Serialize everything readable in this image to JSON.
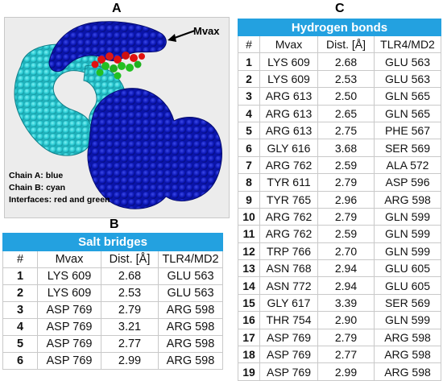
{
  "panels": {
    "a": "A",
    "b": "B",
    "c": "C"
  },
  "figure_a": {
    "arrow_label": "Mvax",
    "legend": [
      "Chain A: blue",
      "Chain B: cyan",
      "Interfaces: red and green"
    ],
    "colors": {
      "chain_a": "#0a14b4",
      "chain_b": "#2dd0d8",
      "interface_red": "#e01010",
      "interface_green": "#22c022",
      "background": "#ececec"
    }
  },
  "salt_bridges": {
    "title": "Salt bridges",
    "columns": [
      "#",
      "Mvax",
      "Dist. [Å]",
      "TLR4/MD2"
    ],
    "rows": [
      [
        "1",
        "LYS 609",
        "2.68",
        "GLU 563"
      ],
      [
        "2",
        "LYS 609",
        "2.53",
        "GLU 563"
      ],
      [
        "3",
        "ASP 769",
        "2.79",
        "ARG 598"
      ],
      [
        "4",
        "ASP 769",
        "3.21",
        "ARG 598"
      ],
      [
        "5",
        "ASP 769",
        "2.77",
        "ARG 598"
      ],
      [
        "6",
        "ASP 769",
        "2.99",
        "ARG 598"
      ]
    ]
  },
  "hydrogen_bonds": {
    "title": "Hydrogen bonds",
    "columns": [
      "#",
      "Mvax",
      "Dist. [Å]",
      "TLR4/MD2"
    ],
    "rows": [
      [
        "1",
        "LYS 609",
        "2.68",
        "GLU 563"
      ],
      [
        "2",
        "LYS 609",
        "2.53",
        "GLU 563"
      ],
      [
        "3",
        "ARG 613",
        "2.50",
        "GLN 565"
      ],
      [
        "4",
        "ARG 613",
        "2.65",
        "GLN 565"
      ],
      [
        "5",
        "ARG 613",
        "2.75",
        "PHE 567"
      ],
      [
        "6",
        "GLY 616",
        "3.68",
        "SER 569"
      ],
      [
        "7",
        "ARG 762",
        "2.59",
        "ALA 572"
      ],
      [
        "8",
        "TYR 611",
        "2.79",
        "ASP 596"
      ],
      [
        "9",
        "TYR 765",
        "2.96",
        "ARG 598"
      ],
      [
        "10",
        "ARG 762",
        "2.79",
        "GLN 599"
      ],
      [
        "11",
        "ARG 762",
        "2.59",
        "GLN 599"
      ],
      [
        "12",
        "TRP 766",
        "2.70",
        "GLN 599"
      ],
      [
        "13",
        "ASN 768",
        "2.94",
        "GLU 605"
      ],
      [
        "14",
        "ASN 772",
        "2.94",
        "GLU 605"
      ],
      [
        "15",
        "GLY 617",
        "3.39",
        "SER 569"
      ],
      [
        "16",
        "THR 754",
        "2.90",
        "GLN 599"
      ],
      [
        "17",
        "ASP 769",
        "2.79",
        "ARG 598"
      ],
      [
        "18",
        "ASP 769",
        "2.77",
        "ARG 598"
      ],
      [
        "19",
        "ASP 769",
        "2.99",
        "ARG 598"
      ]
    ]
  }
}
